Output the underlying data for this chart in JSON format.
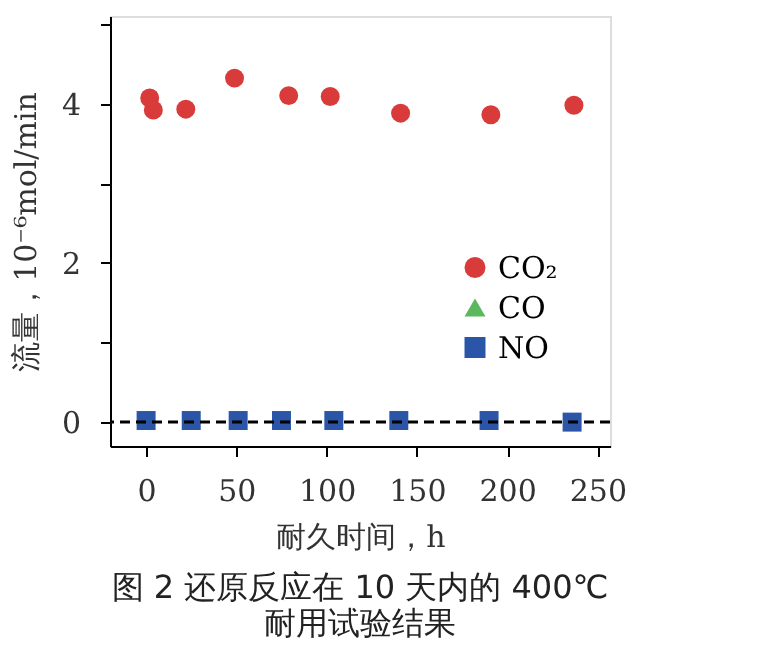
{
  "chart_data": {
    "type": "scatter",
    "title": "图 2 还原反应在 10 天内的 400℃\n耐用试验结果",
    "xlabel": "耐久时间，h",
    "ylabel": "流量，10⁻⁶mol/min",
    "xlim": [
      -20,
      257
    ],
    "xticks": [
      0,
      50,
      100,
      150,
      200,
      250
    ],
    "ylim": [
      -0.3,
      5.1
    ],
    "yticks": [
      0,
      {
        "value": 1,
        "label": null
      },
      2,
      {
        "value": 3,
        "label": null
      },
      4,
      {
        "value": 5,
        "label": null
      }
    ],
    "series": [
      {
        "name": "CO₂",
        "color": "#d93a3a",
        "marker": "circle",
        "x": [
          2,
          4,
          22,
          49,
          79,
          102,
          141,
          191,
          237
        ],
        "values": [
          4.07,
          3.92,
          3.93,
          4.32,
          4.1,
          4.09,
          3.88,
          3.86,
          3.98
        ]
      },
      {
        "name": "CO",
        "color": "#5cb85c",
        "marker": "triangle"
      },
      {
        "name": "NO",
        "color": "#2b55a6",
        "marker": "square",
        "x": [
          0,
          25,
          51,
          75,
          104,
          140,
          190,
          236
        ],
        "values": [
          0.02,
          0.02,
          0.02,
          0.02,
          0.02,
          0.02,
          0.02,
          0.0
        ]
      }
    ],
    "ref_lines": [
      {
        "axis": "y",
        "value": 0,
        "label": null,
        "color": "#000000",
        "line_style": "dashed"
      }
    ],
    "legend": "right",
    "grid": false
  }
}
